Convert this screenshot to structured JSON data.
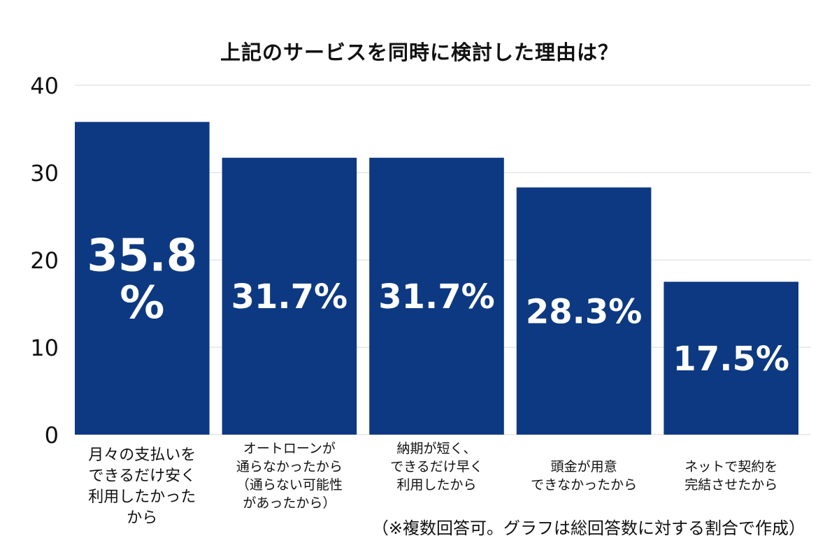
{
  "chart_data": {
    "type": "bar",
    "title": "上記のサービスを同時に検討した理由は？",
    "footnote": "（※複数回答可。グラフは総回答数に対する割合で作成）",
    "ylim": [
      0,
      40
    ],
    "yticks": [
      "0",
      "10",
      "20",
      "30",
      "40"
    ],
    "grid": true,
    "colors": {
      "bar": "#0d3982",
      "label": "#ffffff",
      "grid": "#d9d9d9"
    },
    "categories": [
      [
        "月々の支払いを",
        "できるだけ安く",
        "利用したかった",
        "から"
      ],
      [
        "オートローンが",
        "通らなかったから",
        "（通らない可能性",
        "があったから）"
      ],
      [
        "納期が短く、",
        "できるだけ早く",
        "利用したから"
      ],
      [
        "頭金が用意",
        "できなかったから"
      ],
      [
        "ネットで契約を",
        "完結させたから"
      ]
    ],
    "values": [
      35.8,
      31.7,
      31.7,
      28.3,
      17.5
    ],
    "data_labels": [
      [
        "35.8",
        "%"
      ],
      [
        "31.7%"
      ],
      [
        "31.7%"
      ],
      [
        "28.3%"
      ],
      [
        "17.5%"
      ]
    ]
  }
}
